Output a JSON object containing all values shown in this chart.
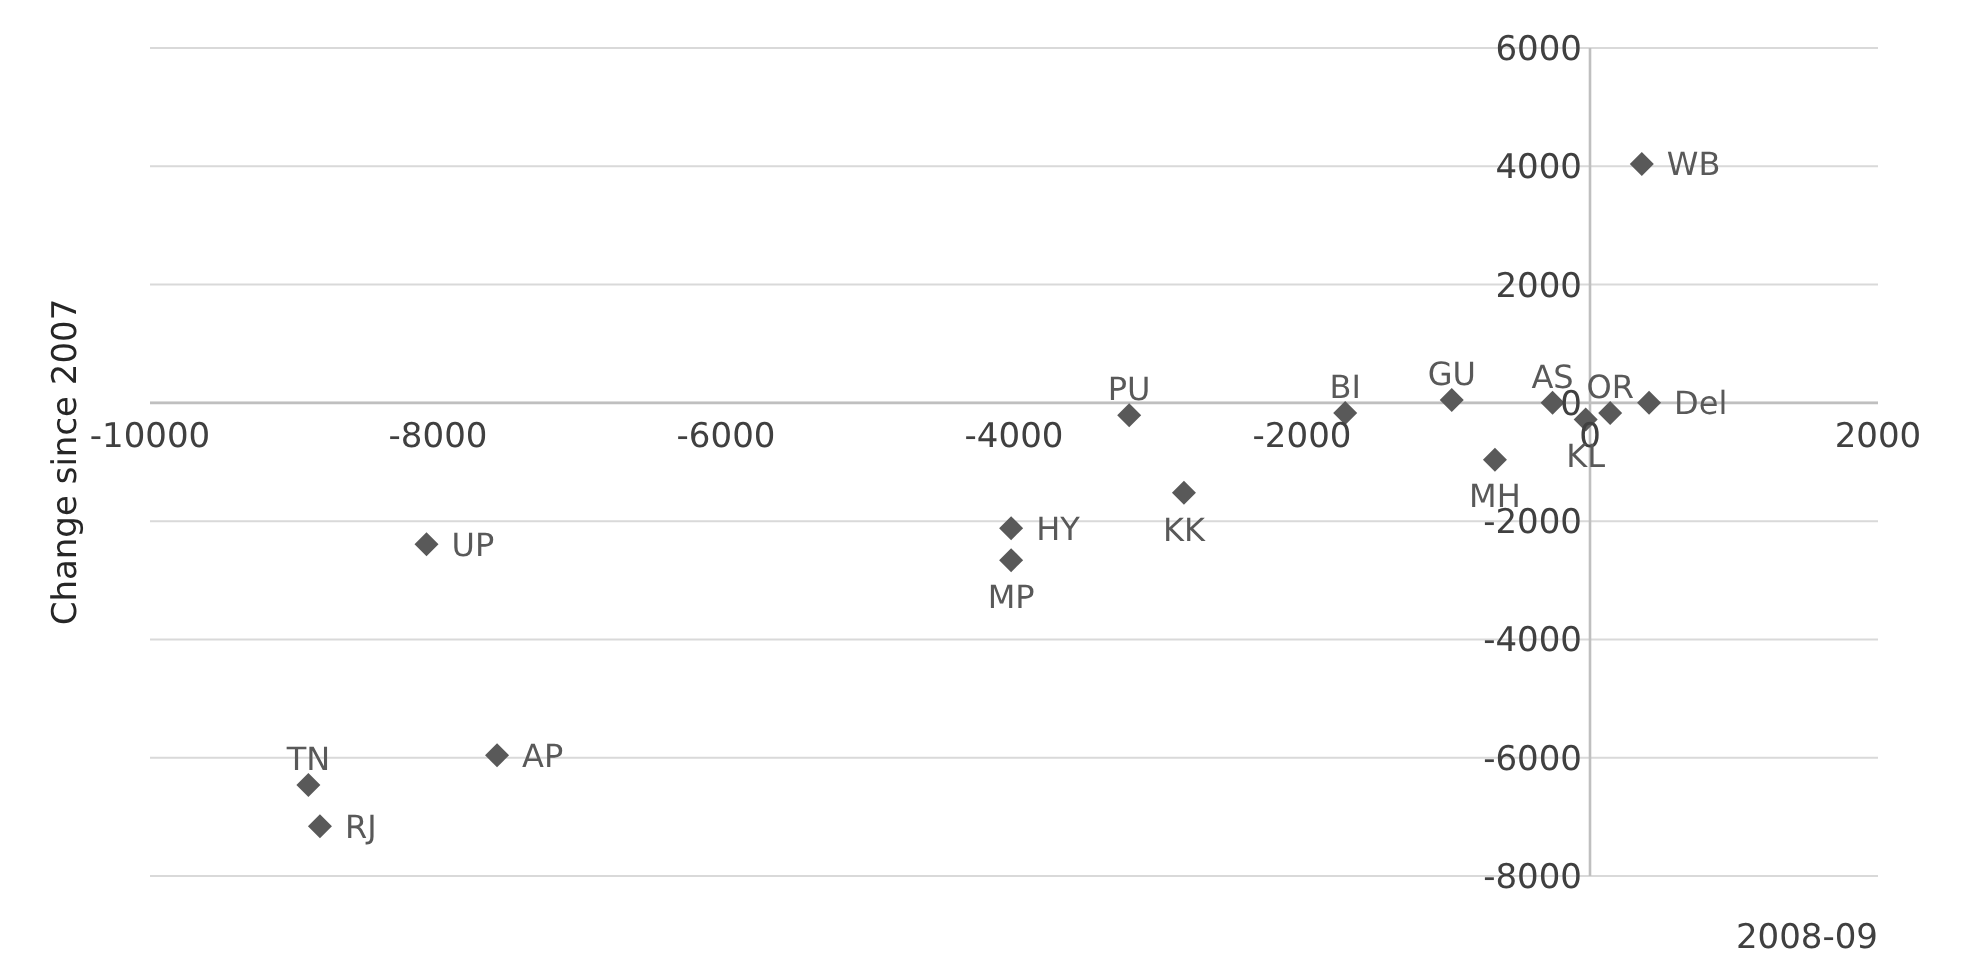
{
  "chart_data": {
    "type": "scatter",
    "xlabel": "2008-09",
    "ylabel": "Change since 2007",
    "xlim": [
      -10000,
      2000
    ],
    "xticks": [
      -10000,
      -8000,
      -6000,
      -4000,
      -2000,
      0,
      2000
    ],
    "ylim": [
      -8000,
      6000
    ],
    "yticks": [
      -8000,
      -6000,
      -4000,
      -2000,
      0,
      2000,
      4000,
      6000
    ],
    "grid": "y",
    "legend": false,
    "marker": "diamond",
    "series": [
      {
        "name": "WB",
        "color": "#595959",
        "x": [
          360
        ],
        "values": [
          4040
        ]
      },
      {
        "name": "Del",
        "color": "#595959",
        "x": [
          410
        ],
        "values": [
          0
        ]
      },
      {
        "name": "OR",
        "color": "#595959",
        "x": [
          140
        ],
        "values": [
          -170
        ]
      },
      {
        "name": "KL",
        "color": "#595959",
        "x": [
          -30
        ],
        "values": [
          -280
        ]
      },
      {
        "name": "AS",
        "color": "#595959",
        "x": [
          -260
        ],
        "values": [
          0
        ]
      },
      {
        "name": "GU",
        "color": "#595959",
        "x": [
          -960
        ],
        "values": [
          50
        ]
      },
      {
        "name": "BI",
        "color": "#595959",
        "x": [
          -1700
        ],
        "values": [
          -170
        ]
      },
      {
        "name": "MH",
        "color": "#595959",
        "x": [
          -660
        ],
        "values": [
          -960
        ]
      },
      {
        "name": "PU",
        "color": "#595959",
        "x": [
          -3200
        ],
        "values": [
          -210
        ]
      },
      {
        "name": "KK",
        "color": "#595959",
        "x": [
          -2820
        ],
        "values": [
          -1520
        ]
      },
      {
        "name": "HY",
        "color": "#595959",
        "x": [
          -4020
        ],
        "values": [
          -2120
        ]
      },
      {
        "name": "MP",
        "color": "#595959",
        "x": [
          -4020
        ],
        "values": [
          -2660
        ]
      },
      {
        "name": "UP",
        "color": "#595959",
        "x": [
          -8080
        ],
        "values": [
          -2390
        ]
      },
      {
        "name": "AP",
        "color": "#595959",
        "x": [
          -7590
        ],
        "values": [
          -5960
        ]
      },
      {
        "name": "TN",
        "color": "#595959",
        "x": [
          -8900
        ],
        "values": [
          -6460
        ]
      },
      {
        "name": "RJ",
        "color": "#595959",
        "x": [
          -8820
        ],
        "values": [
          -7160
        ]
      }
    ]
  }
}
